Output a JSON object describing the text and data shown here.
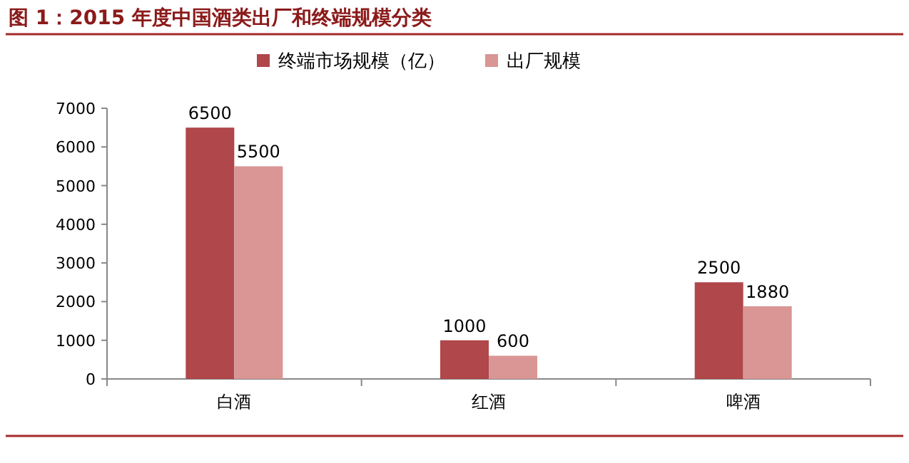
{
  "chart_data": {
    "type": "bar",
    "title": "图 1：2015 年度中国酒类出厂和终端规模分类",
    "categories": [
      "白酒",
      "红酒",
      "啤酒"
    ],
    "series": [
      {
        "name": "终端市场规模（亿）",
        "color": "#b0474a",
        "values": [
          6500,
          1000,
          2500
        ]
      },
      {
        "name": "出厂规模",
        "color": "#d99694",
        "values": [
          5500,
          600,
          1880
        ]
      }
    ],
    "ylim": [
      0,
      7000
    ],
    "yticks": [
      0,
      1000,
      2000,
      3000,
      4000,
      5000,
      6000,
      7000
    ],
    "data_labels": true,
    "legend": "top"
  }
}
